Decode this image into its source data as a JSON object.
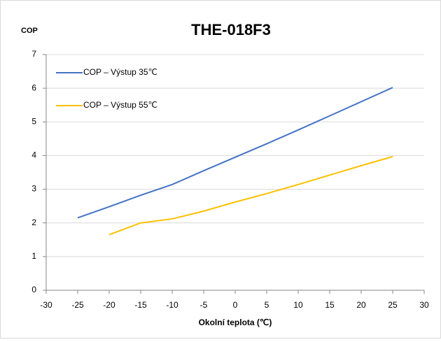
{
  "chart_data": {
    "type": "line",
    "title": "THE-018F3",
    "y_label": "COP",
    "x_label": "Okolní teplota (℃)",
    "xlim": [
      -30,
      30
    ],
    "xticks": [
      -30,
      -25,
      -20,
      -15,
      -10,
      -5,
      0,
      5,
      10,
      15,
      20,
      25,
      30
    ],
    "ylim": [
      0,
      7
    ],
    "yticks": [
      0,
      1,
      2,
      3,
      4,
      5,
      6,
      7
    ],
    "grid": true,
    "legend": "upper left",
    "series": [
      {
        "name": "COP – Výstup 35℃",
        "color": "#4472c4",
        "x": [
          -25,
          -20,
          -15,
          -10,
          -5,
          0,
          5,
          10,
          15,
          20,
          25
        ],
        "values": [
          2.15,
          2.48,
          2.82,
          3.14,
          3.55,
          3.95,
          4.35,
          4.76,
          5.18,
          5.6,
          6.02
        ]
      },
      {
        "name": "COP – Výstup 55℃",
        "color": "#ffc000",
        "x": [
          -20,
          -15,
          -10,
          -5,
          0,
          5,
          10,
          15,
          20,
          25
        ],
        "values": [
          1.65,
          2.0,
          2.12,
          2.35,
          2.62,
          2.87,
          3.14,
          3.42,
          3.7,
          3.97
        ]
      }
    ]
  }
}
